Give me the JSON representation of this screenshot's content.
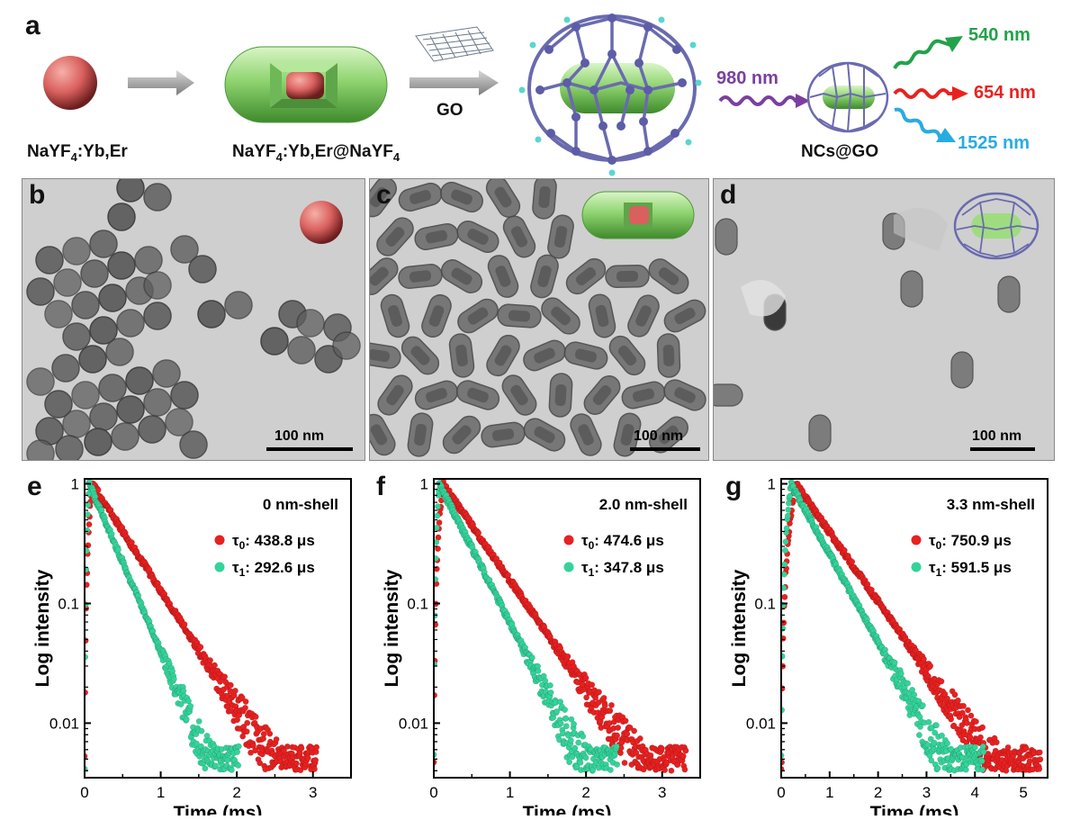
{
  "panel_letters": [
    "a",
    "b",
    "c",
    "d",
    "e",
    "f",
    "g"
  ],
  "scheme": {
    "core_label_main": "NaYF",
    "core_label_sub": "4",
    "core_label_rest": ":Yb,Er",
    "coreshell_label_main": "NaYF",
    "coreshell_label_sub": "4",
    "coreshell_label_mid": ":Yb,Er@NaYF",
    "coreshell_label_sub2": "4",
    "go_label": "GO",
    "excitation": "980 nm",
    "ncs_label": "NCs@GO",
    "emissions": [
      {
        "text": "540 nm",
        "color": "#22a24a"
      },
      {
        "text": "654 nm",
        "color": "#e8231f"
      },
      {
        "text": "1525 nm",
        "color": "#29abe2"
      }
    ],
    "colors": {
      "core": "#e06a6a",
      "shell": "#8fd470",
      "go_cage": "#6a6ab0",
      "arrow": "#9a9a9a",
      "excitation": "#7b3fa0"
    }
  },
  "tem": {
    "scale_label": "100 nm",
    "background": "#cfcfcf",
    "particle": "#5e5e5e"
  },
  "chart_data": [
    {
      "type": "scatter",
      "panel": "e",
      "annotation": "0 nm-shell",
      "xlabel": "Time (ms)",
      "ylabel": "Log intensity",
      "xlim": [
        0,
        3.5
      ],
      "ylim": [
        0.0035,
        1.1
      ],
      "yscale": "log",
      "xticks": [
        0,
        1,
        2,
        3
      ],
      "yticks": [
        1,
        0.1,
        0.01
      ],
      "ytick_labels": [
        "1",
        "0.1",
        "0.01"
      ],
      "series": [
        {
          "sym": "τ",
          "sub": "0",
          "value": ": 438.8 μs",
          "color": "#e82020",
          "lifetime_ms": 0.4388,
          "peak_ms": 0.1,
          "floor": 0.004
        },
        {
          "sym": "τ",
          "sub": "1",
          "value": ": 292.6 μs",
          "color": "#34d39a",
          "lifetime_ms": 0.2926,
          "peak_ms": 0.06,
          "floor": 0.004
        }
      ]
    },
    {
      "type": "scatter",
      "panel": "f",
      "annotation": "2.0 nm-shell",
      "xlabel": "Time (ms)",
      "ylabel": "Log intensity",
      "xlim": [
        0,
        3.5
      ],
      "ylim": [
        0.0035,
        1.1
      ],
      "yscale": "log",
      "xticks": [
        0,
        1,
        2,
        3
      ],
      "yticks": [
        1,
        0.1,
        0.01
      ],
      "ytick_labels": [
        "1",
        "0.1",
        "0.01"
      ],
      "series": [
        {
          "sym": "τ",
          "sub": "0",
          "value": ": 474.6 μs",
          "color": "#e82020",
          "lifetime_ms": 0.4746,
          "peak_ms": 0.12,
          "floor": 0.004
        },
        {
          "sym": "τ",
          "sub": "1",
          "value": ": 347.8 μs",
          "color": "#34d39a",
          "lifetime_ms": 0.3478,
          "peak_ms": 0.07,
          "floor": 0.004
        }
      ]
    },
    {
      "type": "scatter",
      "panel": "g",
      "annotation": "3.3 nm-shell",
      "xlabel": "Time (ms)",
      "ylabel": "Log intensity",
      "xlim": [
        0,
        5.5
      ],
      "ylim": [
        0.0035,
        1.1
      ],
      "yscale": "log",
      "xticks": [
        0,
        1,
        2,
        3,
        4,
        5
      ],
      "yticks": [
        1,
        0.1,
        0.01
      ],
      "ytick_labels": [
        "1",
        "0.1",
        "0.01"
      ],
      "series": [
        {
          "sym": "τ",
          "sub": "0",
          "value": ": 750.9 μs",
          "color": "#e82020",
          "lifetime_ms": 0.7509,
          "peak_ms": 0.3,
          "floor": 0.004
        },
        {
          "sym": "τ",
          "sub": "1",
          "value": ": 591.5 μs",
          "color": "#34d39a",
          "lifetime_ms": 0.5915,
          "peak_ms": 0.2,
          "floor": 0.004
        }
      ]
    }
  ]
}
